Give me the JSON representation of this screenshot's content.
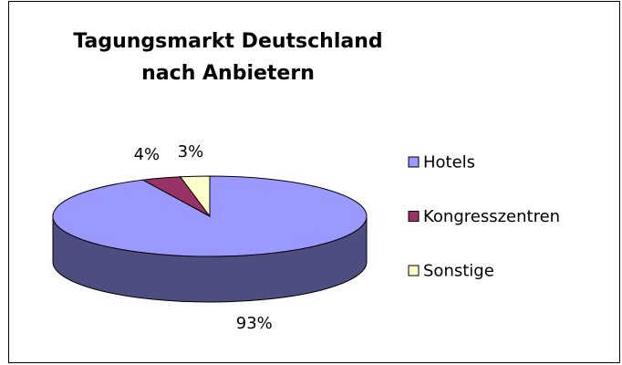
{
  "chart_data": {
    "type": "pie",
    "title": "Tagungsmarkt Deutschland nach Anbietern",
    "categories": [
      "Hotels",
      "Kongresszentren",
      "Sonstige"
    ],
    "values": [
      93,
      4,
      3
    ],
    "value_labels": [
      "93%",
      "4%",
      "3%"
    ],
    "colors": [
      "#9999ff",
      "#993366",
      "#ffffcc"
    ],
    "legend": "right"
  }
}
